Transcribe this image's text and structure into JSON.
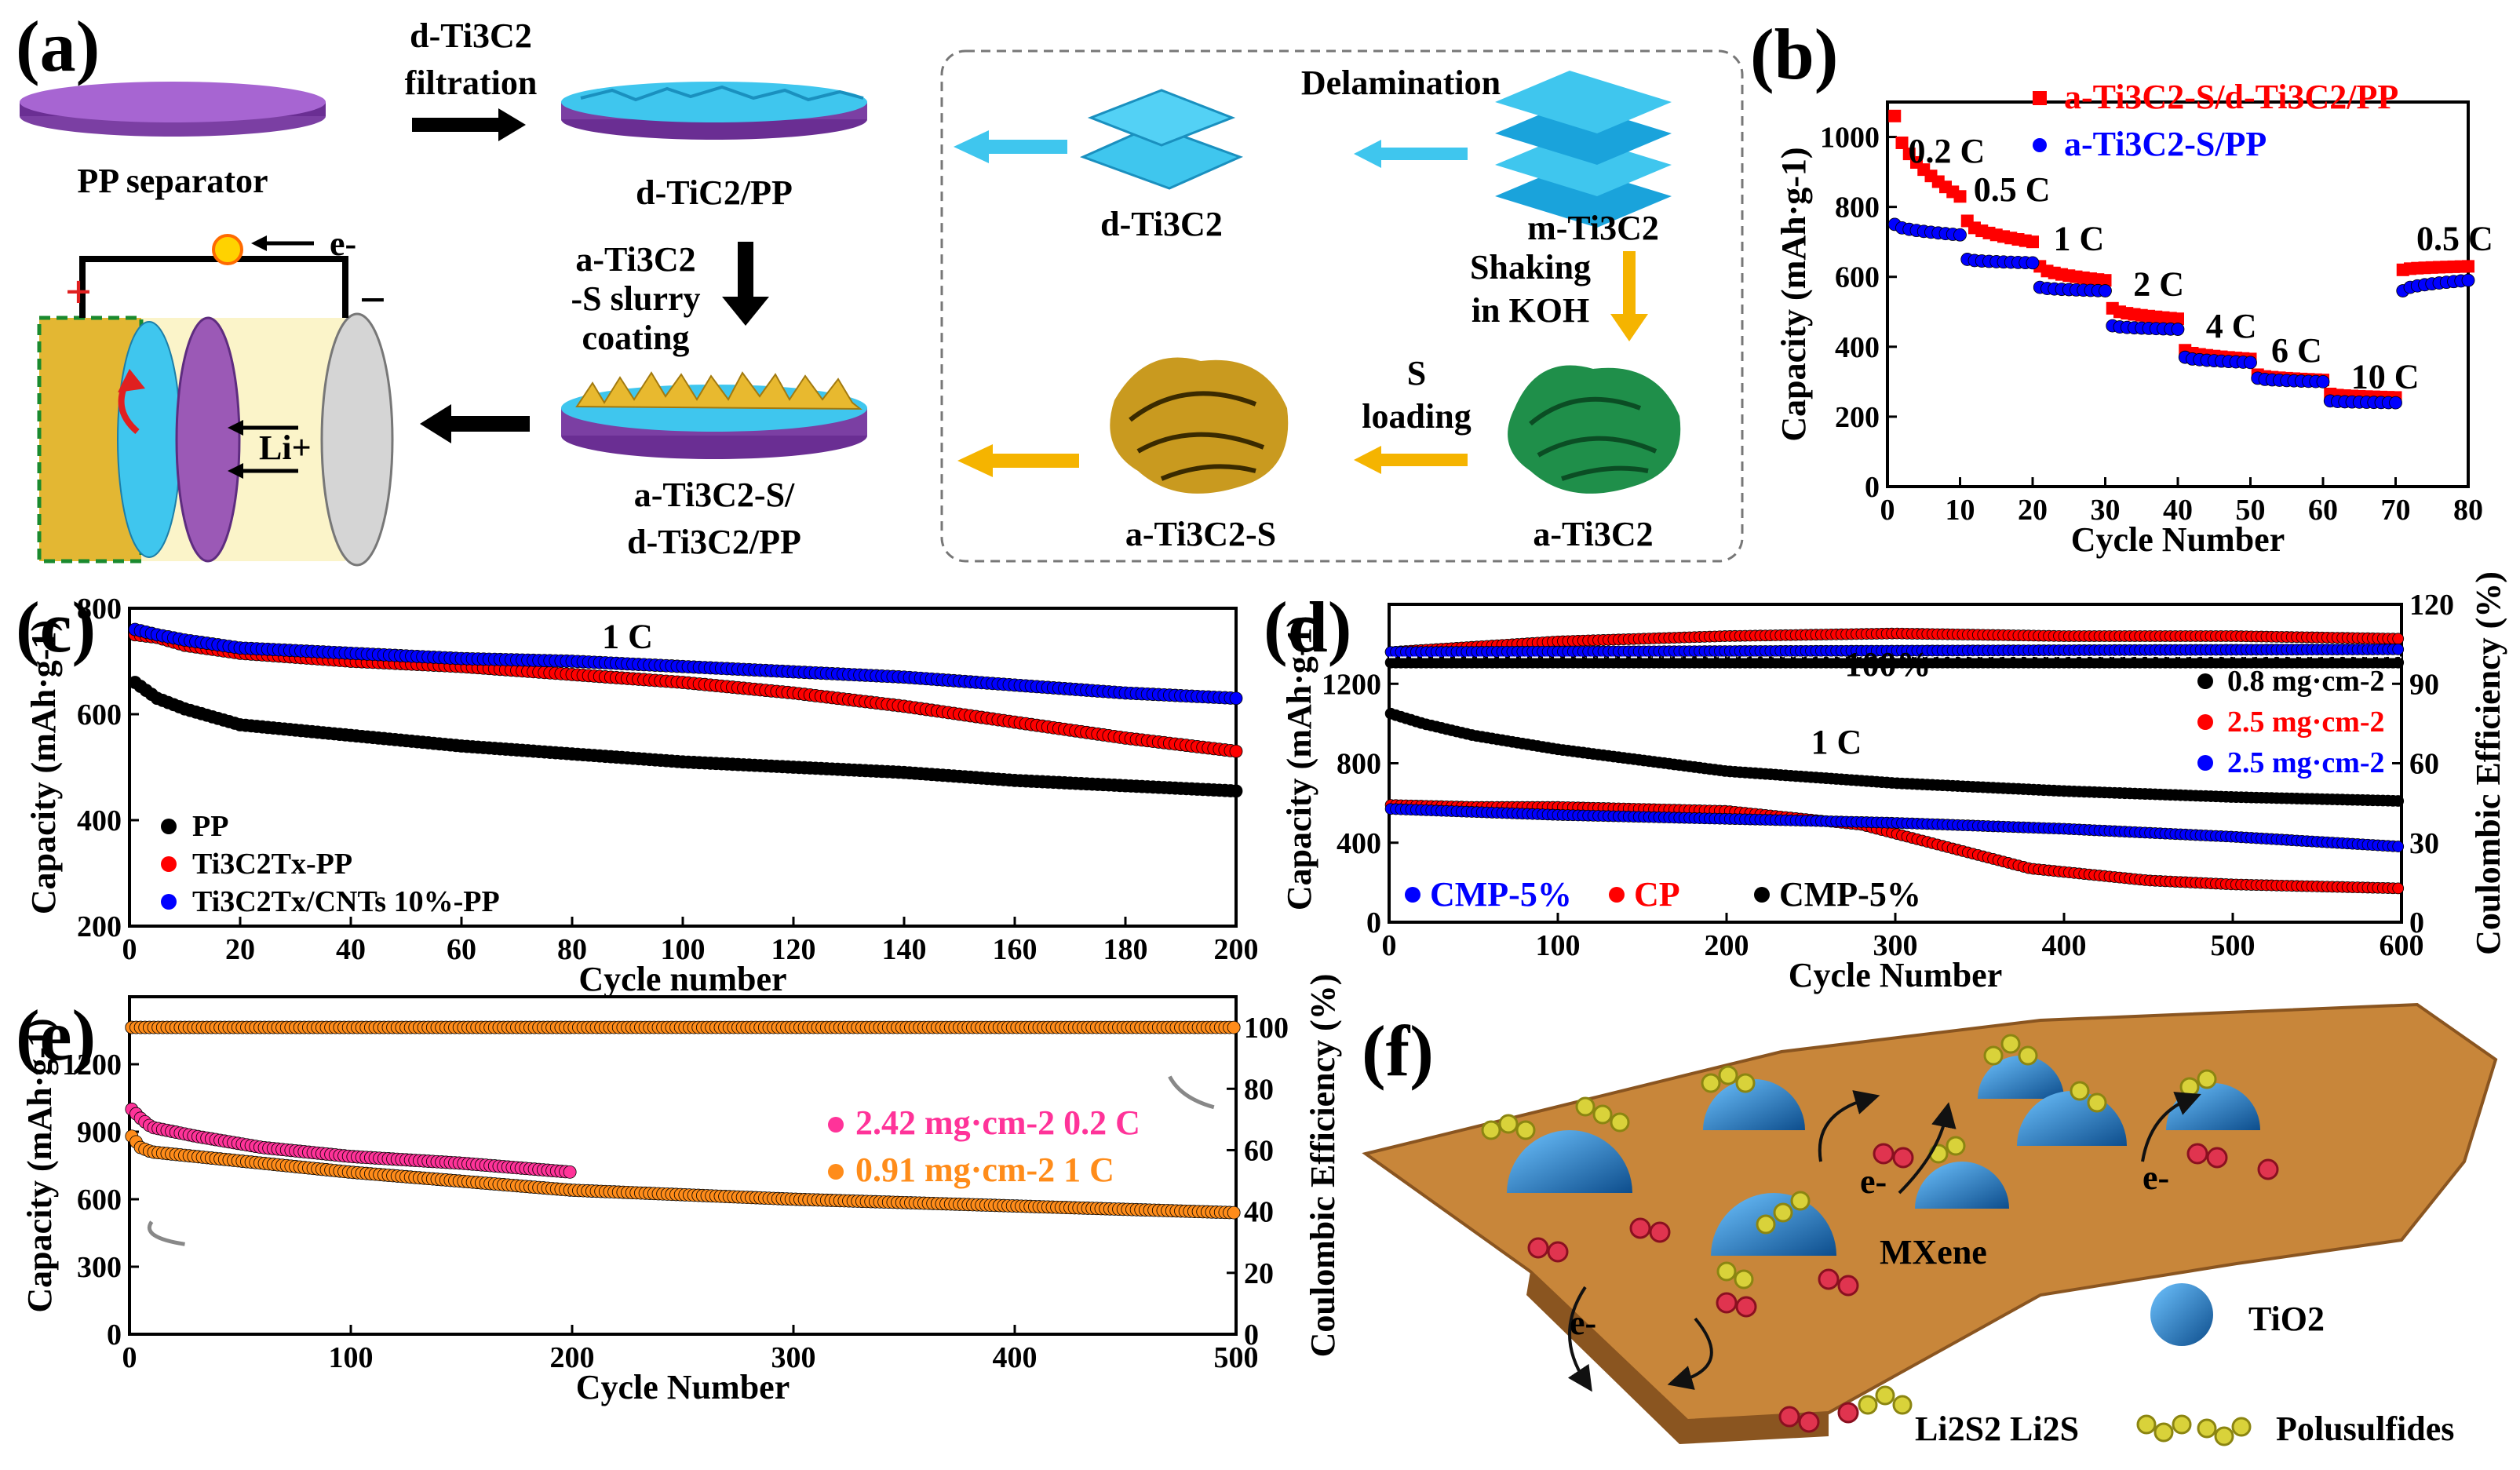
{
  "figure": {
    "panel_letters": [
      "(a)",
      "(b)",
      "(c)",
      "(d)",
      "(e)",
      "(f)"
    ]
  },
  "panel_a": {
    "pp_separator": "PP separator",
    "filtration_1": "d-Ti3C2",
    "filtration_2": "filtration",
    "dtic2_pp": "d-TiC2/PP",
    "slurry_1": "a-Ti3C2",
    "slurry_2": "-S slurry",
    "slurry_3": "coating",
    "composite_1": "a-Ti3C2-S/",
    "composite_2": "d-Ti3C2/PP",
    "electron": "e-",
    "lithium": "Li+",
    "plus": "+",
    "minus": "−",
    "delamination": "Delamination",
    "d_ti3c2": "d-Ti3C2",
    "m_ti3c2": "m-Ti3C2",
    "shaking_1": "Shaking",
    "shaking_2": "in KOH",
    "s_loading_1": "S",
    "s_loading_2": "loading",
    "a_ti3c2_s": "a-Ti3C2-S",
    "a_ti3c2": "a-Ti3C2",
    "colors": {
      "purple": "#9b59b6",
      "cyan": "#3fc6ee",
      "gold": "#e8b92f",
      "green": "#1f8f4a",
      "black": "#111111"
    }
  },
  "chart_data": [
    {
      "id": "b",
      "type": "scatter",
      "title": "",
      "xlabel": "Cycle Number",
      "ylabel": "Capacity (mAh·g-1)",
      "xlim": [
        0,
        80
      ],
      "ylim": [
        0,
        1100
      ],
      "xticks": [
        0,
        10,
        20,
        30,
        40,
        50,
        60,
        70,
        80
      ],
      "yticks": [
        0,
        200,
        400,
        600,
        800,
        1000
      ],
      "rate_labels": [
        "0.2 C",
        "0.5 C",
        "1 C",
        "2 C",
        "4 C",
        "6 C",
        "10 C",
        "0.5 C"
      ],
      "series": [
        {
          "name": "a-Ti3C2-S/d-Ti3C2/PP",
          "color": "#ff0000",
          "marker": "square",
          "segments": [
            [
              1,
              10,
              1060,
              830
            ],
            [
              11,
              20,
              760,
              700
            ],
            [
              21,
              30,
              630,
              590
            ],
            [
              31,
              40,
              510,
              480
            ],
            [
              41,
              50,
              390,
              365
            ],
            [
              51,
              60,
              320,
              305
            ],
            [
              61,
              70,
              265,
              255
            ],
            [
              71,
              80,
              620,
              630
            ]
          ]
        },
        {
          "name": "a-Ti3C2-S/PP",
          "color": "#0000ff",
          "marker": "circle",
          "segments": [
            [
              1,
              10,
              750,
              720
            ],
            [
              11,
              20,
              650,
              640
            ],
            [
              21,
              30,
              570,
              560
            ],
            [
              31,
              40,
              460,
              450
            ],
            [
              41,
              50,
              370,
              355
            ],
            [
              51,
              60,
              310,
              300
            ],
            [
              61,
              70,
              245,
              240
            ],
            [
              71,
              80,
              560,
              590
            ]
          ]
        }
      ]
    },
    {
      "id": "c",
      "type": "scatter",
      "title": "1 C",
      "xlabel": "Cycle number",
      "ylabel": "Capacity (mAh·g-1)",
      "xlim": [
        0,
        200
      ],
      "ylim": [
        200,
        800
      ],
      "xticks": [
        0,
        20,
        40,
        60,
        80,
        100,
        120,
        140,
        160,
        180,
        200
      ],
      "yticks": [
        200,
        400,
        600,
        800
      ],
      "series": [
        {
          "name": "PP",
          "color": "#000000",
          "curve": [
            [
              1,
              660
            ],
            [
              5,
              630
            ],
            [
              10,
              610
            ],
            [
              20,
              580
            ],
            [
              40,
              560
            ],
            [
              60,
              540
            ],
            [
              80,
              525
            ],
            [
              100,
              510
            ],
            [
              120,
              500
            ],
            [
              140,
              490
            ],
            [
              160,
              475
            ],
            [
              180,
              465
            ],
            [
              200,
              455
            ]
          ]
        },
        {
          "name": "Ti3C2Tx-PP",
          "color": "#ff0000",
          "curve": [
            [
              1,
              750
            ],
            [
              5,
              745
            ],
            [
              10,
              730
            ],
            [
              20,
              715
            ],
            [
              40,
              700
            ],
            [
              60,
              690
            ],
            [
              80,
              675
            ],
            [
              100,
              660
            ],
            [
              120,
              640
            ],
            [
              140,
              615
            ],
            [
              160,
              585
            ],
            [
              180,
              555
            ],
            [
              200,
              530
            ]
          ]
        },
        {
          "name": "Ti3C2Tx/CNTs 10%-PP",
          "color": "#0000ff",
          "curve": [
            [
              1,
              760
            ],
            [
              5,
              750
            ],
            [
              10,
              740
            ],
            [
              20,
              725
            ],
            [
              40,
              715
            ],
            [
              60,
              705
            ],
            [
              80,
              700
            ],
            [
              100,
              690
            ],
            [
              120,
              680
            ],
            [
              140,
              670
            ],
            [
              160,
              655
            ],
            [
              180,
              640
            ],
            [
              200,
              630
            ]
          ]
        }
      ]
    },
    {
      "id": "d",
      "type": "scatter",
      "title": "1 C",
      "xlabel": "Cycle Number",
      "ylabel": "Capacity (mAh·g-1)",
      "y2label": "Coulombic Efficiency (%)",
      "xlim": [
        0,
        600
      ],
      "ylim": [
        0,
        1600
      ],
      "y2lim": [
        0,
        120
      ],
      "xticks": [
        0,
        100,
        200,
        300,
        400,
        500,
        600
      ],
      "yticks": [
        0,
        400,
        800,
        1200
      ],
      "y2ticks": [
        0,
        30,
        60,
        90,
        120
      ],
      "annotation": "100%",
      "legend_top": [
        "0.8 mg·cm-2",
        "2.5 mg·cm-2",
        "2.5 mg·cm-2"
      ],
      "legend_bottom": [
        "CMP-5%",
        "CP",
        "CMP-5%"
      ],
      "series": [
        {
          "name": "0.8 mg·cm-2",
          "color": "#000000",
          "curve": [
            [
              1,
              1050
            ],
            [
              20,
              1000
            ],
            [
              50,
              940
            ],
            [
              100,
              870
            ],
            [
              200,
              760
            ],
            [
              300,
              700
            ],
            [
              400,
              660
            ],
            [
              500,
              630
            ],
            [
              600,
              610
            ]
          ],
          "ce": [
            [
              1,
              98
            ],
            [
              600,
              98
            ]
          ]
        },
        {
          "name": "2.5 mg·cm-2 (CP)",
          "color": "#ff0000",
          "curve": [
            [
              1,
              590
            ],
            [
              50,
              580
            ],
            [
              100,
              580
            ],
            [
              200,
              560
            ],
            [
              280,
              490
            ],
            [
              330,
              380
            ],
            [
              380,
              270
            ],
            [
              450,
              210
            ],
            [
              500,
              190
            ],
            [
              600,
              170
            ]
          ],
          "ce": [
            [
              1,
              102
            ],
            [
              100,
              106
            ],
            [
              200,
              108
            ],
            [
              300,
              109
            ],
            [
              400,
              108
            ],
            [
              500,
              108
            ],
            [
              600,
              107
            ]
          ]
        },
        {
          "name": "2.5 mg·cm-2 (CMP-5%)",
          "color": "#0000ff",
          "curve": [
            [
              1,
              570
            ],
            [
              50,
              555
            ],
            [
              100,
              540
            ],
            [
              200,
              520
            ],
            [
              300,
              500
            ],
            [
              400,
              470
            ],
            [
              500,
              430
            ],
            [
              600,
              380
            ]
          ],
          "ce": [
            [
              1,
              102
            ],
            [
              600,
              103
            ]
          ]
        }
      ]
    },
    {
      "id": "e",
      "type": "scatter",
      "title": "",
      "xlabel": "Cycle Number",
      "ylabel": "Capacity (mAh·g-1)",
      "y2label": "Coulombic Efficiency (%)",
      "xlim": [
        0,
        500
      ],
      "ylim": [
        0,
        1500
      ],
      "y2lim": [
        0,
        110
      ],
      "xticks": [
        0,
        100,
        200,
        300,
        400,
        500
      ],
      "yticks": [
        0,
        300,
        600,
        900,
        1200
      ],
      "y2ticks": [
        0,
        20,
        40,
        60,
        80,
        100
      ],
      "series": [
        {
          "name": "2.42 mg·cm-2 0.2 C",
          "color": "#ff3399",
          "curve": [
            [
              1,
              1000
            ],
            [
              5,
              960
            ],
            [
              10,
              920
            ],
            [
              30,
              880
            ],
            [
              60,
              830
            ],
            [
              100,
              790
            ],
            [
              150,
              760
            ],
            [
              200,
              720
            ]
          ],
          "ce": [
            [
              1,
              100
            ],
            [
              200,
              100
            ]
          ]
        },
        {
          "name": "0.91 mg·cm-2 1 C",
          "color": "#ff8c1a",
          "curve": [
            [
              1,
              880
            ],
            [
              5,
              830
            ],
            [
              10,
              810
            ],
            [
              30,
              790
            ],
            [
              60,
              760
            ],
            [
              100,
              720
            ],
            [
              200,
              640
            ],
            [
              300,
              600
            ],
            [
              400,
              570
            ],
            [
              500,
              540
            ]
          ],
          "ce": [
            [
              1,
              100
            ],
            [
              500,
              100
            ]
          ]
        }
      ]
    }
  ],
  "panel_f": {
    "mxene": "MXene",
    "tio2": "TiO2",
    "li_species": "Li2S2  Li2S",
    "polysulfides": "Polusulfides",
    "electron": "e-",
    "colors": {
      "sheet": "#c8863a",
      "tio2": "#1e6fb0",
      "ps": "#d9d23a",
      "li": "#e0344f"
    }
  }
}
